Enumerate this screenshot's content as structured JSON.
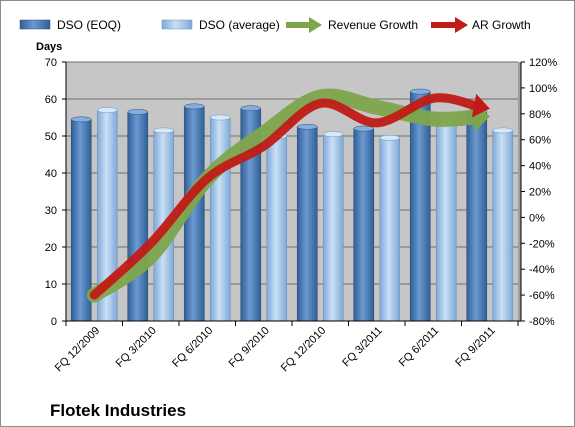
{
  "chart_data": {
    "type": "bar",
    "company": "Flotek Industries",
    "ylabel": "Days",
    "categories": [
      "FQ 12/2009",
      "FQ 3/2010",
      "FQ 6/2010",
      "FQ 9/2010",
      "FQ 12/2010",
      "FQ 3/2011",
      "FQ 6/2011",
      "FQ 9/2011"
    ],
    "ylim": [
      0,
      70
    ],
    "y_ticks": [
      0,
      10,
      20,
      30,
      40,
      50,
      60,
      70
    ],
    "y2lim": [
      -80,
      120
    ],
    "y2_ticks": [
      "-80%",
      "-60%",
      "-40%",
      "-20%",
      "0%",
      "20%",
      "40%",
      "60%",
      "80%",
      "100%",
      "120%"
    ],
    "y2_tick_values": [
      -80,
      -60,
      -40,
      -20,
      0,
      20,
      40,
      60,
      80,
      100,
      120
    ],
    "grid": "horizontal",
    "legend": "top",
    "series": [
      {
        "name": "DSO (EOQ)",
        "kind": "bar",
        "axis": "left",
        "color": "#4f7fb7",
        "values": [
          54.5,
          56.5,
          58,
          57.5,
          52.5,
          52,
          62,
          56.5
        ]
      },
      {
        "name": "DSO (average)",
        "kind": "bar",
        "axis": "left",
        "color": "#9cc3e8",
        "values": [
          57,
          51.5,
          55,
          50,
          50.5,
          49.5,
          55,
          51.5
        ]
      },
      {
        "name": "Revenue Growth",
        "kind": "arrow-line",
        "axis": "right",
        "color": "#7ea54c",
        "values": [
          -60,
          -30,
          30,
          65,
          93,
          85,
          76,
          78
        ]
      },
      {
        "name": "AR Growth",
        "kind": "arrow-line",
        "axis": "right",
        "color": "#c11b17",
        "values": [
          -60,
          -20,
          30,
          55,
          88,
          73,
          92,
          84
        ]
      }
    ]
  }
}
